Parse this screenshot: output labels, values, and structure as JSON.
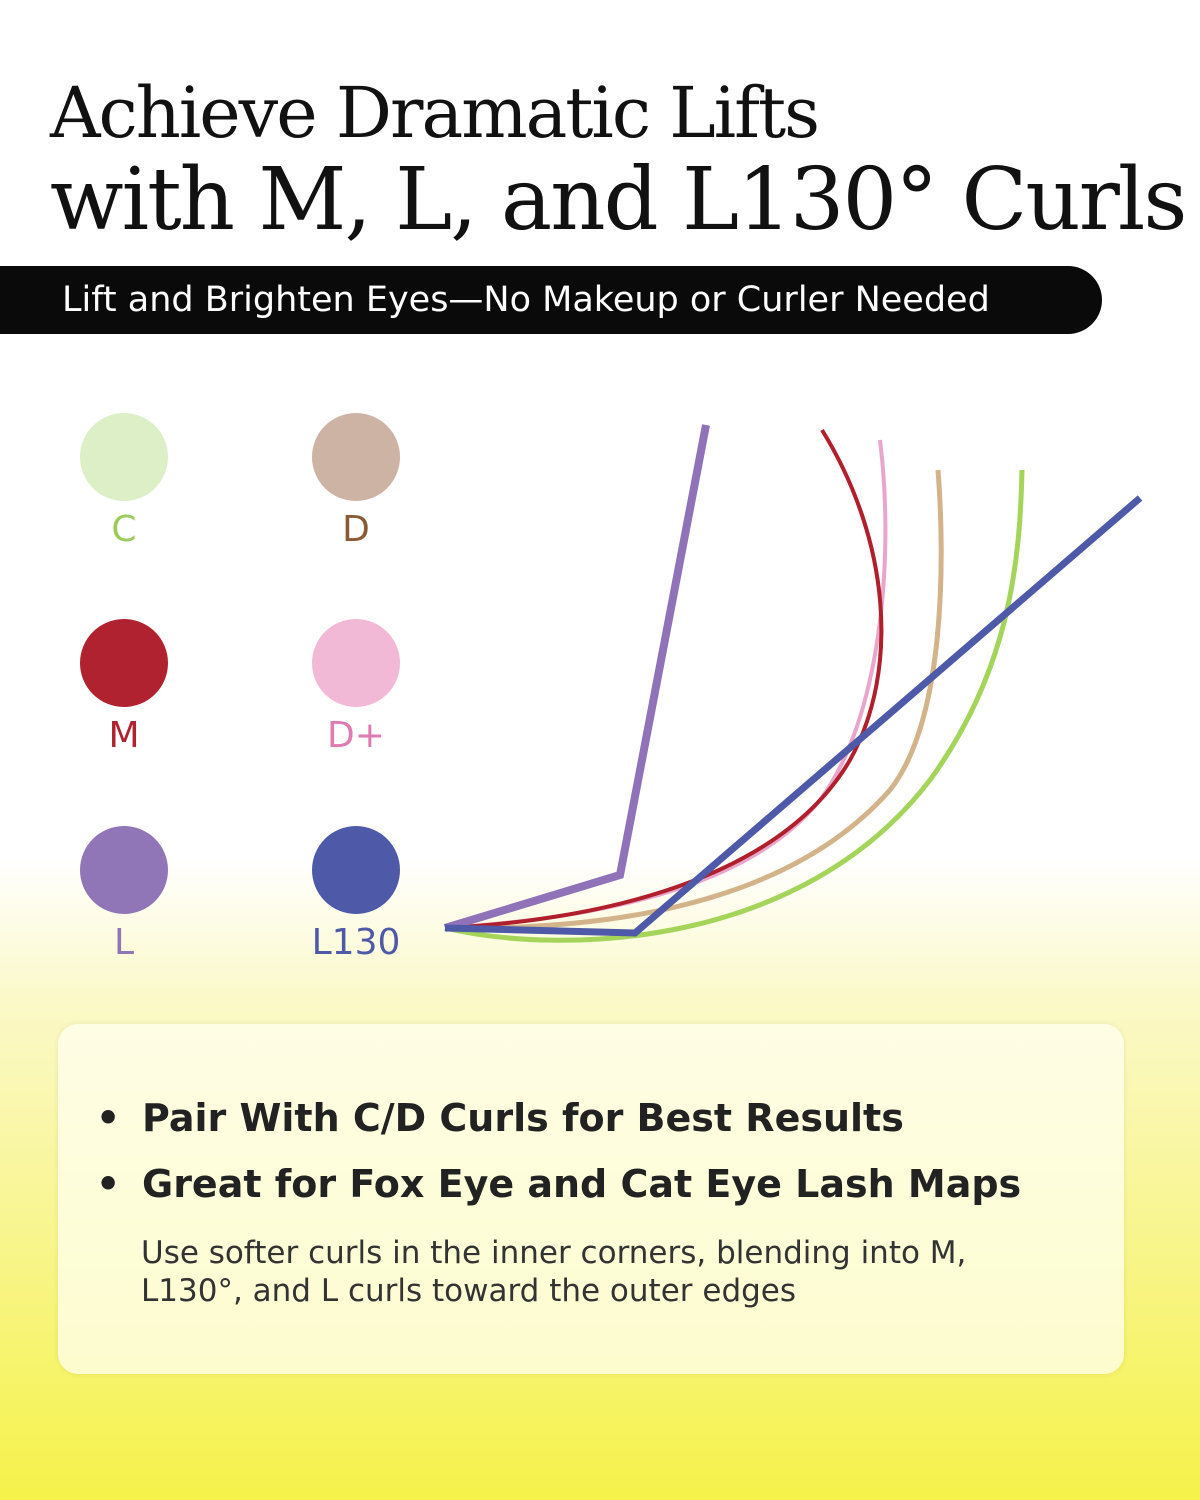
{
  "title": {
    "line1": "Achieve Dramatic Lifts",
    "line2": "with M, L, and L130° Curls"
  },
  "banner": "Lift and Brighten Eyes—No Makeup or Curler Needed",
  "curls": [
    {
      "label": "C",
      "dot_color": "#dcefc6",
      "label_color": "#9ccb5c"
    },
    {
      "label": "D",
      "dot_color": "#cdb3a4",
      "label_color": "#8a5a34"
    },
    {
      "label": "M",
      "dot_color": "#b0222f",
      "label_color": "#b0222f"
    },
    {
      "label": "D+",
      "dot_color": "#f1b9d6",
      "label_color": "#e07ab2"
    },
    {
      "label": "L",
      "dot_color": "#9076b6",
      "label_color": "#9076b6"
    },
    {
      "label": "L130",
      "dot_color": "#4e5aa8",
      "label_color": "#4e5aa8"
    }
  ],
  "bullets": [
    "Pair With C/D Curls for Best Results",
    "Great for Fox Eye and Cat Eye Lash Maps"
  ],
  "note": "Use softer curls in the inner corners, blending into M, L130°, and L curls toward the outer edges"
}
